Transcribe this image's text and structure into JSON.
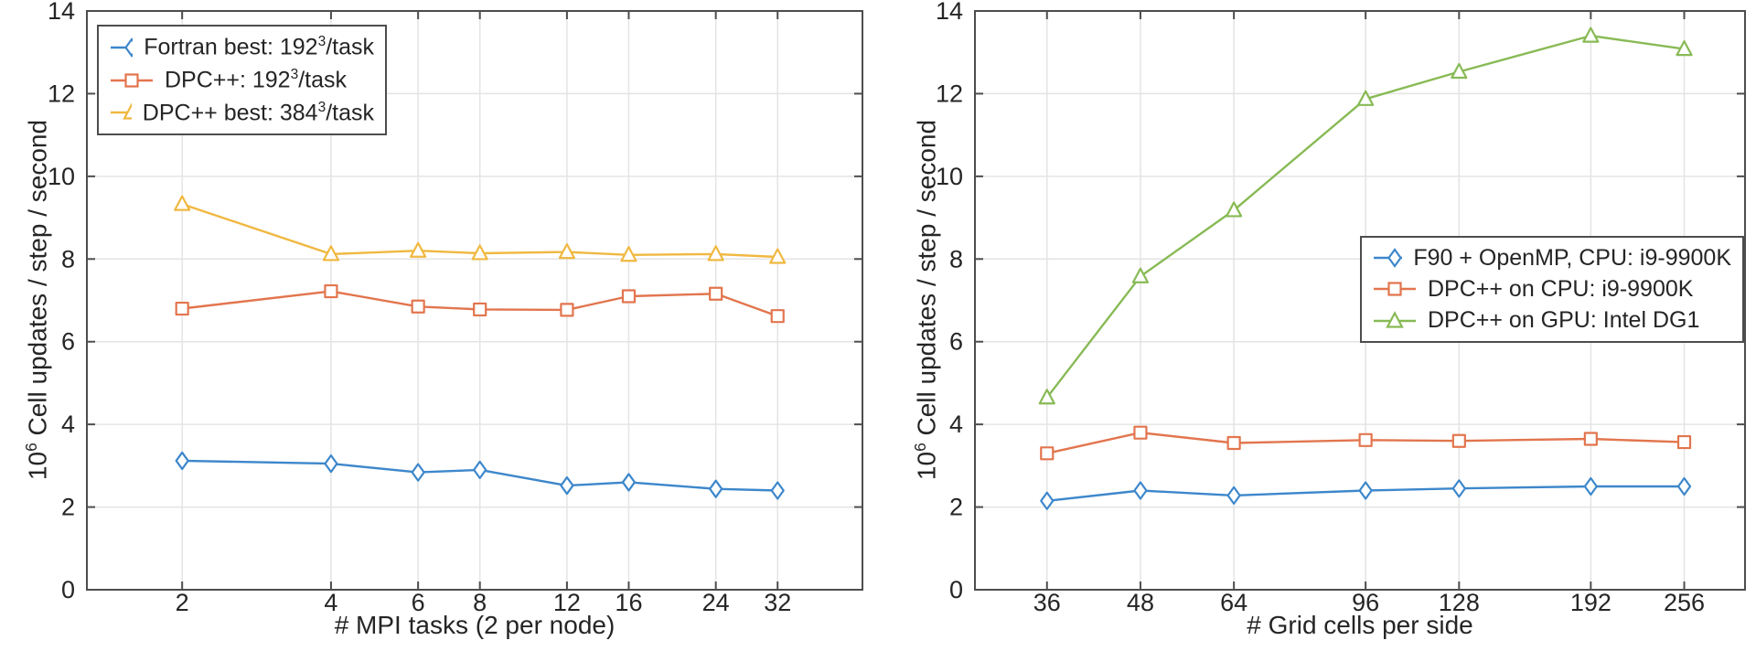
{
  "page": {
    "background": "#ffffff"
  },
  "colors": {
    "blue": "#3d87cb",
    "orange": "#e2754e",
    "yellow": "#f0b840",
    "green": "#88ba55",
    "axis": "#4d4d4d",
    "grid": "#e4e4e4",
    "text": "#252525",
    "marker_fill": "#ffffff"
  },
  "chart_data": [
    {
      "type": "line",
      "x_scale": "log2",
      "grid": true,
      "xlabel": "# MPI tasks (2 per node)",
      "ylabel_segments": [
        {
          "t": "10"
        },
        {
          "t": "6",
          "sup": true
        },
        {
          "t": " Cell updates / step / second"
        }
      ],
      "x": [
        2,
        4,
        6,
        8,
        12,
        16,
        24,
        32
      ],
      "x_tick_labels": [
        "2",
        "4",
        "6",
        "8",
        "12",
        "16",
        "24",
        "32"
      ],
      "ylim": [
        0,
        14
      ],
      "y_ticks": [
        0,
        2,
        4,
        6,
        8,
        10,
        12,
        14
      ],
      "y_tick_labels": [
        "0",
        "2",
        "4",
        "6",
        "8",
        "10",
        "12",
        "14"
      ],
      "legend_position": "top-left",
      "series": [
        {
          "id": "fortran-best",
          "label_segments": [
            {
              "t": "Fortran best: 192"
            },
            {
              "t": "3",
              "sup": true
            },
            {
              "t": "/task"
            }
          ],
          "color_key": "blue",
          "marker": "diamond",
          "values": [
            3.12,
            3.05,
            2.84,
            2.9,
            2.52,
            2.6,
            2.44,
            2.4
          ]
        },
        {
          "id": "dpcpp-192",
          "label_segments": [
            {
              "t": "DPC++: 192"
            },
            {
              "t": "3",
              "sup": true
            },
            {
              "t": "/task"
            }
          ],
          "color_key": "orange",
          "marker": "square",
          "values": [
            6.8,
            7.22,
            6.85,
            6.78,
            6.77,
            7.1,
            7.16,
            6.62
          ]
        },
        {
          "id": "dpcpp-best-384",
          "label_segments": [
            {
              "t": "DPC++ best: 384"
            },
            {
              "t": "3",
              "sup": true
            },
            {
              "t": "/task"
            }
          ],
          "color_key": "yellow",
          "marker": "triangle",
          "values": [
            9.33,
            8.12,
            8.2,
            8.14,
            8.17,
            8.1,
            8.12,
            8.05
          ]
        }
      ]
    },
    {
      "type": "line",
      "x_scale": "log2",
      "grid": true,
      "xlabel": "# Grid cells per side",
      "ylabel_segments": [
        {
          "t": "10"
        },
        {
          "t": "6",
          "sup": true
        },
        {
          "t": " Cell updates / step / second"
        }
      ],
      "x": [
        36,
        48,
        64,
        96,
        128,
        192,
        256
      ],
      "x_tick_labels": [
        "36",
        "48",
        "64",
        "96",
        "128",
        "192",
        "256"
      ],
      "ylim": [
        0,
        14
      ],
      "y_ticks": [
        0,
        2,
        4,
        6,
        8,
        10,
        12,
        14
      ],
      "y_tick_labels": [
        "0",
        "2",
        "4",
        "6",
        "8",
        "10",
        "12",
        "14"
      ],
      "legend_position": "middle-right",
      "series": [
        {
          "id": "f90-openmp-cpu",
          "label_segments": [
            {
              "t": "F90 + OpenMP, CPU: i9-9900K"
            }
          ],
          "color_key": "blue",
          "marker": "diamond",
          "values": [
            2.15,
            2.4,
            2.28,
            2.4,
            2.45,
            2.5,
            2.5
          ]
        },
        {
          "id": "dpcpp-cpu",
          "label_segments": [
            {
              "t": "DPC++ on CPU: i9-9900K"
            }
          ],
          "color_key": "orange",
          "marker": "square",
          "values": [
            3.3,
            3.8,
            3.55,
            3.62,
            3.6,
            3.65,
            3.57
          ]
        },
        {
          "id": "dpcpp-gpu",
          "label_segments": [
            {
              "t": "DPC++ on GPU: Intel DG1"
            }
          ],
          "color_key": "green",
          "marker": "triangle",
          "values": [
            4.65,
            7.58,
            9.18,
            11.87,
            12.53,
            13.4,
            13.08
          ]
        }
      ]
    }
  ]
}
